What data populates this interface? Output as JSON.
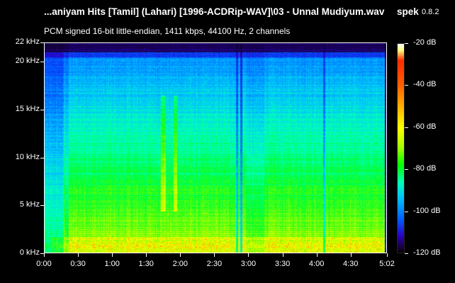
{
  "window": {
    "title": "...aniyam Hits [Tamil] (Lahari) [1996-ACDRip-WAV]\\03 - Unnal Mudiyum.wav",
    "app_name": "spek",
    "app_version": "0.8.2",
    "subtitle": "PCM signed 16-bit little-endian, 1411 kbps, 44100 Hz, 2 channels"
  },
  "chart_data": {
    "type": "heatmap",
    "title": "",
    "xlabel": "",
    "ylabel": "",
    "x_axis": {
      "unit": "time",
      "range": [
        "0:00",
        "5:02"
      ],
      "tick_labels": [
        "0:00",
        "0:30",
        "1:00",
        "1:30",
        "2:00",
        "2:30",
        "3:00",
        "3:30",
        "4:00",
        "4:30",
        "5:02"
      ]
    },
    "y_axis": {
      "unit": "kHz",
      "range": [
        0,
        22
      ],
      "tick_labels": [
        "0 kHz",
        "5 kHz",
        "10 kHz",
        "15 kHz",
        "20 kHz",
        "22 kHz"
      ]
    },
    "color_scale": {
      "unit": "dB",
      "range": [
        -120,
        -20
      ],
      "tick_labels": [
        "-20 dB",
        "-40 dB",
        "-60 dB",
        "-80 dB",
        "-100 dB",
        "-120 dB"
      ],
      "colors": [
        "#ffffff",
        "#ff2a00",
        "#ffb000",
        "#ffff00",
        "#00ff00",
        "#00ffb0",
        "#00c0ff",
        "#0060ff",
        "#2a00c0",
        "#000000"
      ]
    }
  }
}
